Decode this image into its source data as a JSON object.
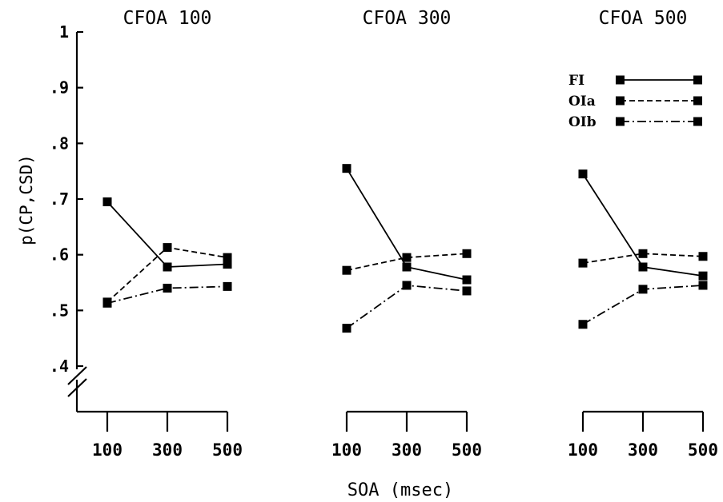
{
  "chart_data": {
    "type": "line",
    "ylabel": "p(CP,CSD)",
    "xlabel": "SOA (msec)",
    "ylim": [
      0.4,
      1.0
    ],
    "yticks": [
      {
        "value": 0.4,
        "label": ".4"
      },
      {
        "value": 0.5,
        "label": ".5"
      },
      {
        "value": 0.6,
        "label": ".6"
      },
      {
        "value": 0.7,
        "label": ".7"
      },
      {
        "value": 0.8,
        "label": ".8"
      },
      {
        "value": 0.9,
        "label": ".9"
      },
      {
        "value": 1.0,
        "label": "1"
      }
    ],
    "axis_break": true,
    "grid": false,
    "legend_position": "top-right of third panel",
    "legend": [
      {
        "label": "FI",
        "style": "solid"
      },
      {
        "label": "OIa",
        "style": "dashed"
      },
      {
        "label": "OIb",
        "style": "dashdot"
      }
    ],
    "panels": [
      {
        "title": "CFOA 100",
        "x": [
          100,
          300,
          500
        ],
        "x_labels": [
          "100",
          "300",
          "500"
        ],
        "series": [
          {
            "style": "solid",
            "values": [
              0.695,
              0.578,
              0.583
            ]
          },
          {
            "style": "dashed",
            "values": [
              0.515,
              0.613,
              0.595
            ]
          },
          {
            "style": "dashdot",
            "values": [
              0.513,
              0.54,
              0.543
            ]
          }
        ]
      },
      {
        "title": "CFOA 300",
        "x": [
          100,
          300,
          500
        ],
        "x_labels": [
          "100",
          "300",
          "500"
        ],
        "series": [
          {
            "style": "solid",
            "values": [
              0.755,
              0.578,
              0.555
            ]
          },
          {
            "style": "dashed",
            "values": [
              0.572,
              0.595,
              0.602
            ]
          },
          {
            "style": "dashdot",
            "values": [
              0.468,
              0.545,
              0.535
            ]
          }
        ]
      },
      {
        "title": "CFOA 500",
        "x": [
          100,
          300,
          500
        ],
        "x_labels": [
          "100",
          "300",
          "500"
        ],
        "series": [
          {
            "style": "solid",
            "values": [
              0.745,
              0.578,
              0.562
            ]
          },
          {
            "style": "dashed",
            "values": [
              0.585,
              0.602,
              0.597
            ]
          },
          {
            "style": "dashdot",
            "values": [
              0.475,
              0.538,
              0.545
            ]
          }
        ]
      }
    ]
  }
}
